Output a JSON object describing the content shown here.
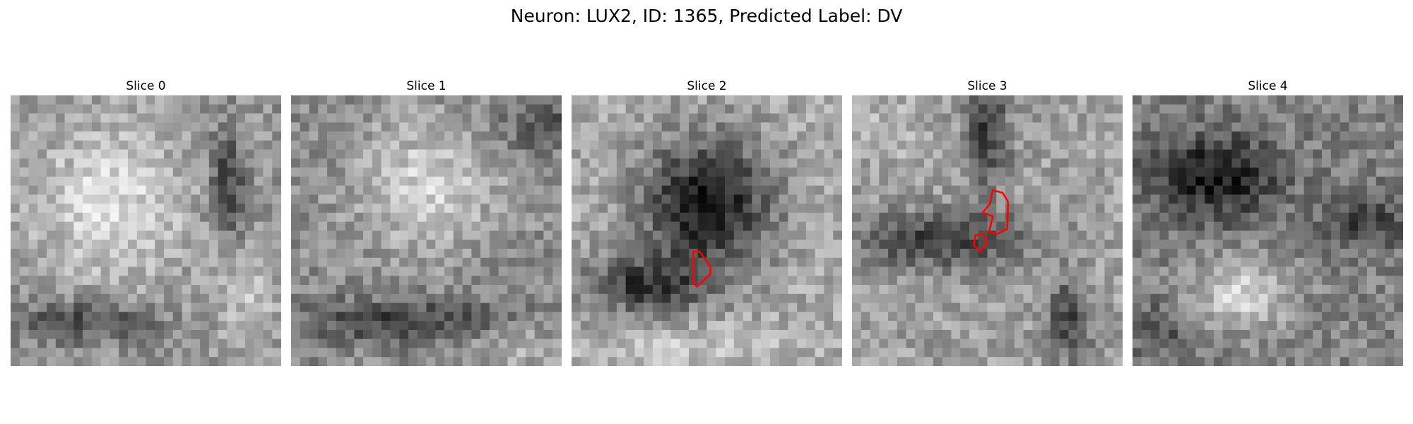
{
  "figure": {
    "title": "Neuron: LUX2, ID: 1365, Predicted Label: DV"
  },
  "panels": [
    {
      "title": "Slice 0",
      "image": "grayscale EM patch, large bright cell body with dark membrane boundary on right",
      "roi_overlay": false
    },
    {
      "title": "Slice 1",
      "image": "grayscale EM patch, bright textured cell body with dark band below",
      "roi_overlay": false
    },
    {
      "title": "Slice 2",
      "image": "grayscale EM patch, large dark region in center surrounded by bright tissue",
      "roi_overlay": true
    },
    {
      "title": "Slice 3",
      "image": "grayscale EM patch, dark horizontal band with dark vertical structure on right",
      "roi_overlay": true
    },
    {
      "title": "Slice 4",
      "image": "grayscale EM patch, dark upper region and brighter lower region",
      "roi_overlay": false
    }
  ],
  "colors": {
    "roi_outline": "#ff0000",
    "background": "#ffffff"
  }
}
